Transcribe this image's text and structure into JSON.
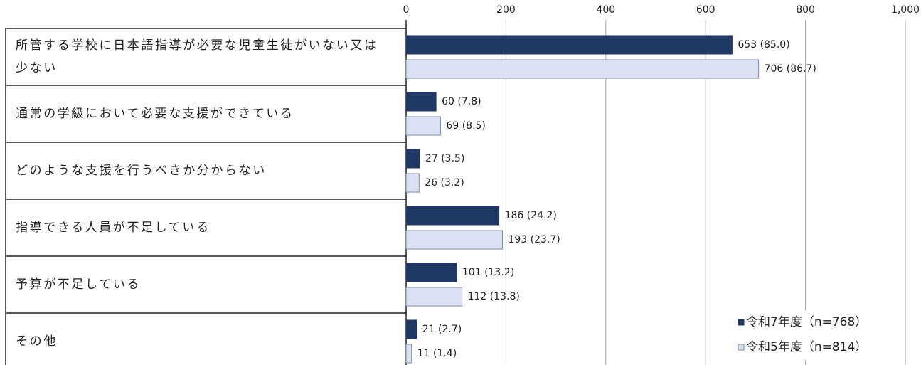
{
  "chart_data": {
    "type": "bar",
    "orientation": "horizontal",
    "categories": [
      "所管する学校に日本語指導が必要な児童生徒がいない又は少ない",
      "通常の学級において必要な支援ができている",
      "どのような支援を行うべきか分からない",
      "指導できる人員が不足している",
      "予算が不足している",
      "その他"
    ],
    "series": [
      {
        "name": "令和7年度（n=768）",
        "color": "#203864",
        "values": [
          653,
          60,
          27,
          186,
          101,
          21
        ],
        "value_labels": [
          "653 (85.0)",
          "60 (7.8)",
          "27 (3.5)",
          "186 (24.2)",
          "101 (13.2)",
          "21 (2.7)"
        ]
      },
      {
        "name": "令和5年度（n=814）",
        "color": "#d9e1f2",
        "values": [
          706,
          69,
          26,
          193,
          112,
          11
        ],
        "value_labels": [
          "706 (86.7)",
          "69 (8.5)",
          "26 (3.2)",
          "193 (23.7)",
          "112 (13.8)",
          "11 (1.4)"
        ]
      }
    ],
    "xlim": [
      0,
      1000
    ],
    "xticks": [
      0,
      200,
      400,
      600,
      800,
      {
        "value": 1000,
        "label": "1,000"
      }
    ],
    "grid": true,
    "legend": "lower right"
  }
}
